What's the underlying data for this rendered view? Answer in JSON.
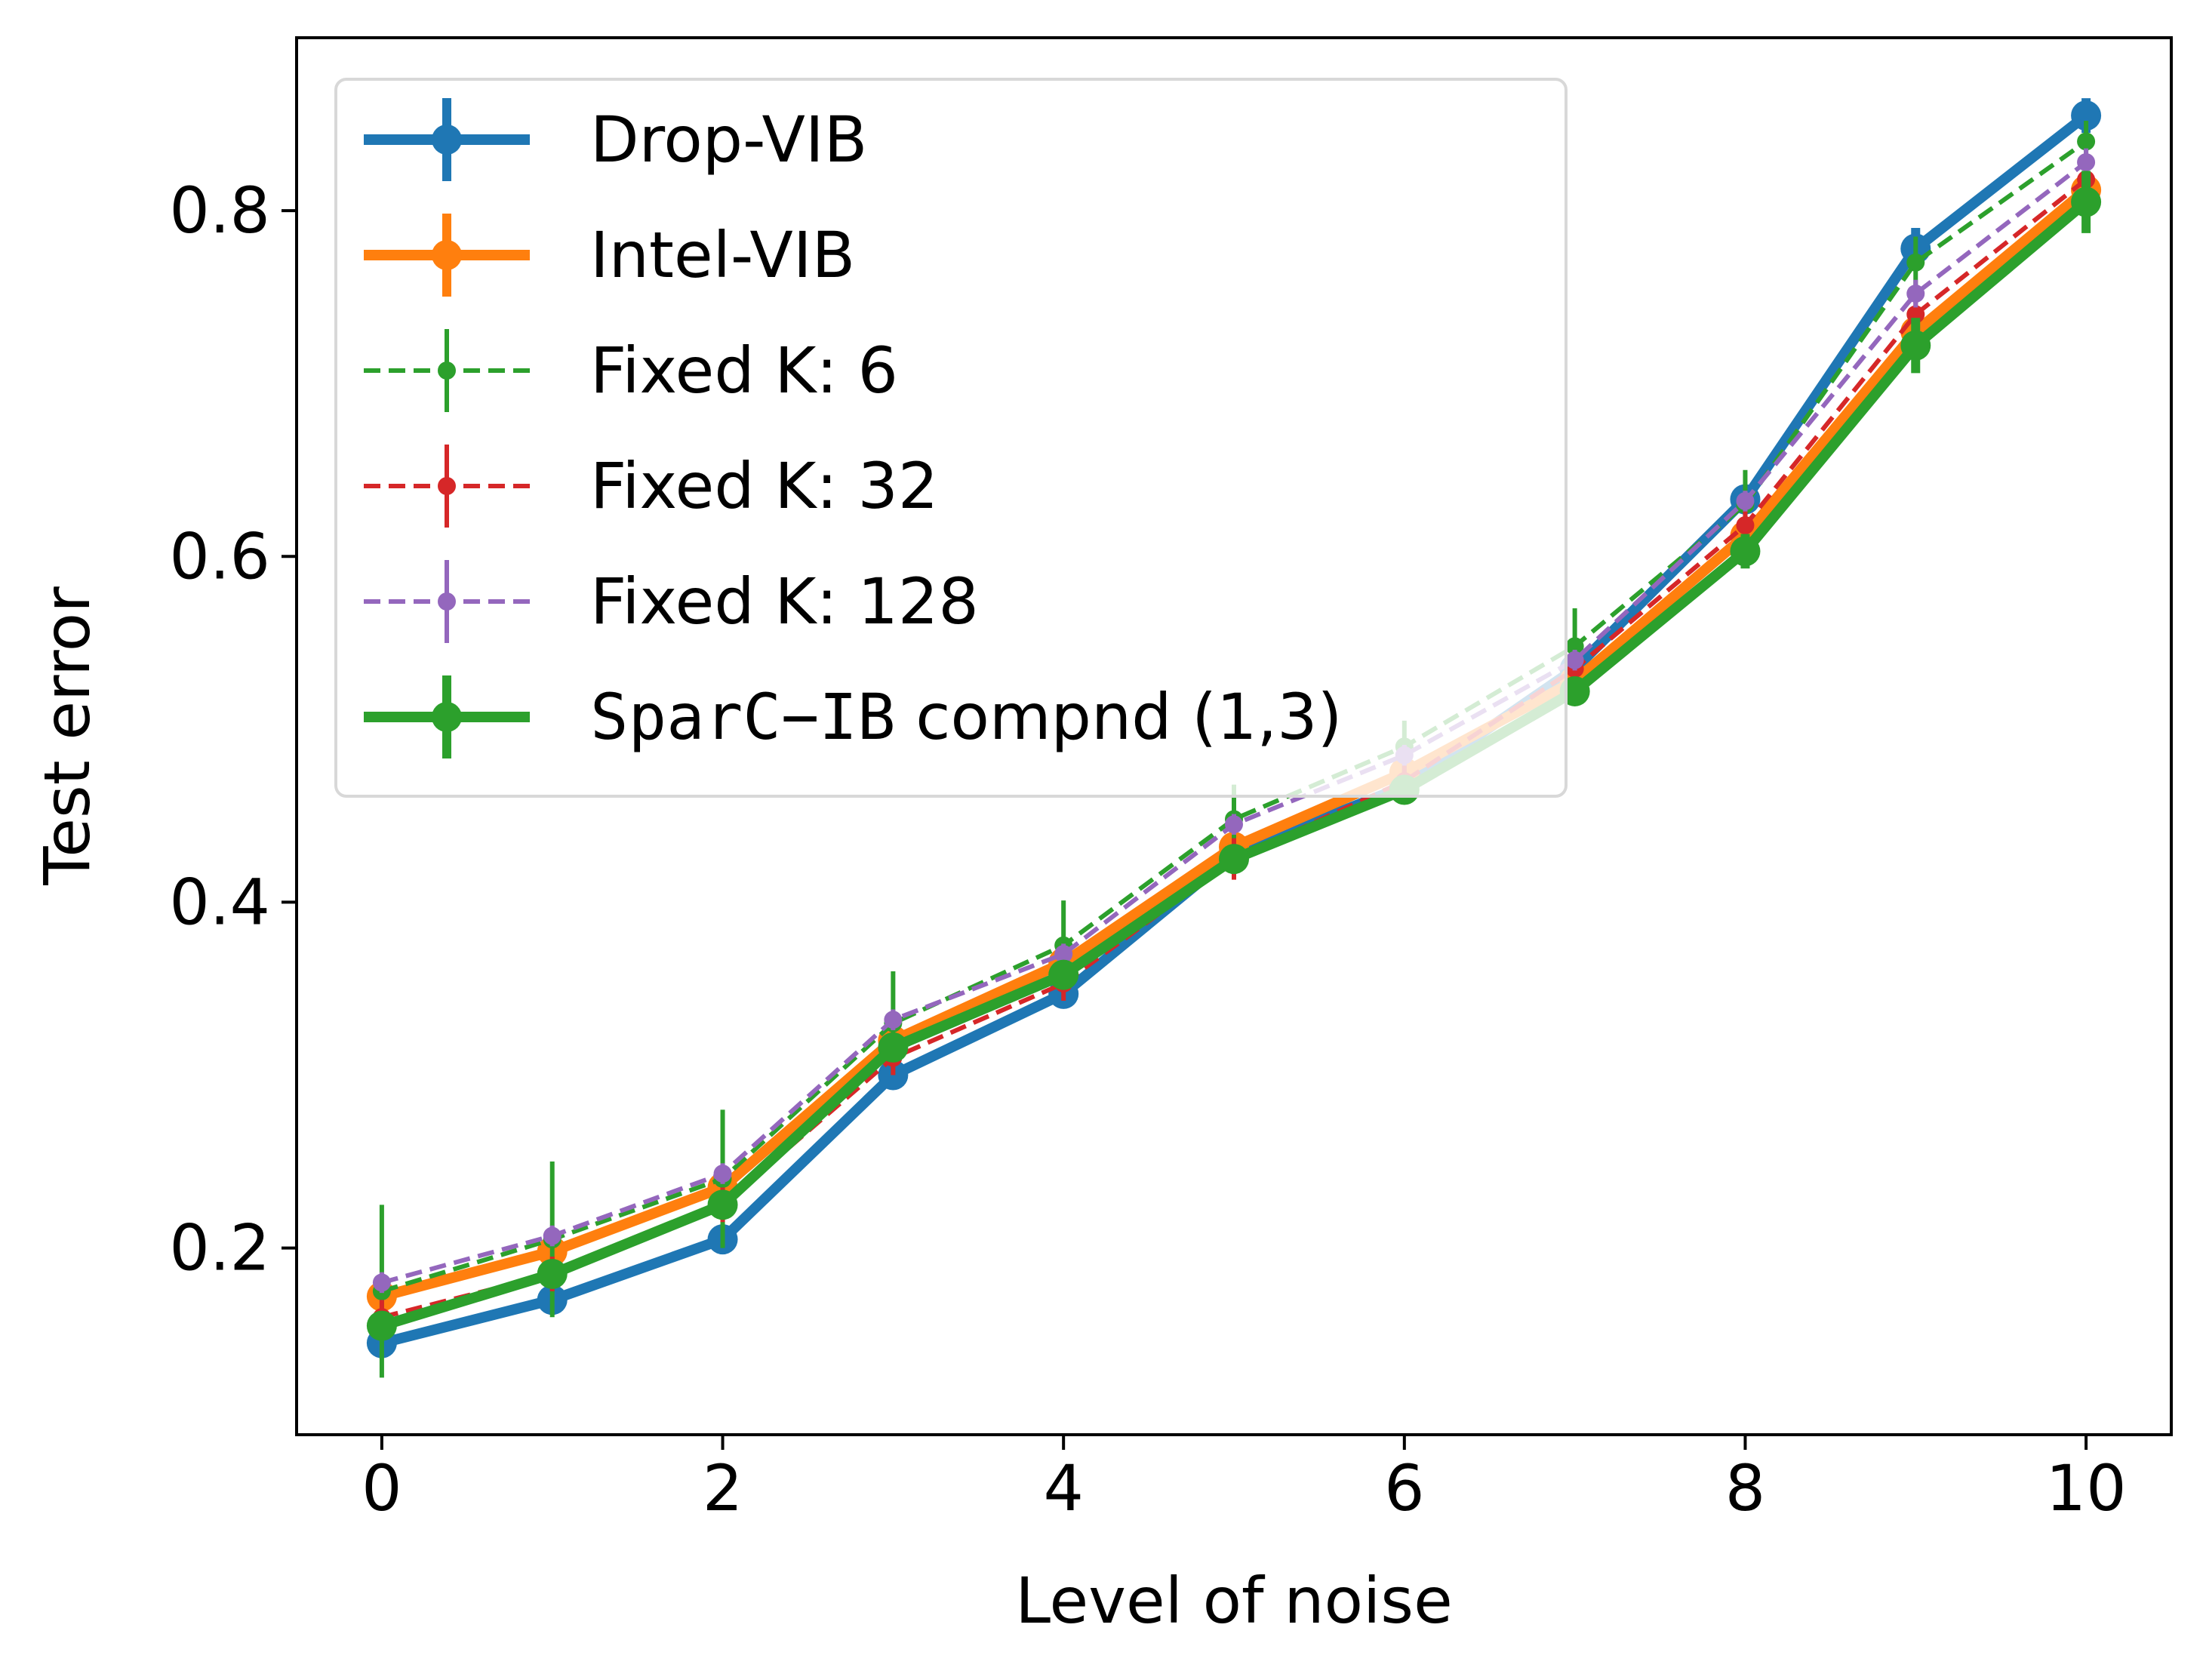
{
  "chart_data": {
    "type": "line",
    "xlabel": "Level of noise",
    "ylabel": "Test error",
    "xlim": [
      -0.5,
      10.5
    ],
    "ylim": [
      0.092,
      0.9
    ],
    "xticks": [
      0,
      2,
      4,
      6,
      8,
      10
    ],
    "yticks": [
      0.2,
      0.4,
      0.6,
      0.8
    ],
    "xtick_labels": [
      "0",
      "2",
      "4",
      "6",
      "8",
      "10"
    ],
    "ytick_labels": [
      "0.2",
      "0.4",
      "0.6",
      "0.8"
    ],
    "legend_position": "upper-left",
    "x": [
      0,
      1,
      2,
      3,
      4,
      5,
      6,
      7,
      8,
      9,
      10
    ],
    "series": [
      {
        "name": "Drop-VIB",
        "color": "#1f77b4",
        "style": "solid",
        "values": [
          0.145,
          0.17,
          0.205,
          0.3,
          0.347,
          0.428,
          0.467,
          0.535,
          0.633,
          0.778,
          0.855
        ],
        "errors": [
          0.005,
          0.006,
          0.006,
          0.005,
          0.005,
          0.005,
          0.005,
          0.005,
          0.007,
          0.012,
          0.01
        ]
      },
      {
        "name": "Intel-VIB",
        "color": "#ff7f0e",
        "style": "solid",
        "values": [
          0.172,
          0.198,
          0.235,
          0.32,
          0.365,
          0.432,
          0.475,
          0.528,
          0.612,
          0.73,
          0.812
        ],
        "errors": [
          0.005,
          0.006,
          0.006,
          0.005,
          0.005,
          0.005,
          0.005,
          0.005,
          0.006,
          0.008,
          0.01
        ]
      },
      {
        "name": "Fixed K: 6",
        "color": "#2ca02c",
        "style": "dashed",
        "values": [
          0.175,
          0.205,
          0.24,
          0.33,
          0.375,
          0.448,
          0.49,
          0.548,
          0.63,
          0.77,
          0.84
        ],
        "errors": [
          0.05,
          0.045,
          0.04,
          0.03,
          0.026,
          0.02,
          0.015,
          0.022,
          0.02,
          0.015,
          0.012
        ]
      },
      {
        "name": "Fixed K: 32",
        "color": "#d62728",
        "style": "dashed",
        "values": [
          0.16,
          0.185,
          0.225,
          0.31,
          0.353,
          0.425,
          0.47,
          0.535,
          0.618,
          0.74,
          0.818
        ],
        "errors": [
          0.01,
          0.01,
          0.01,
          0.01,
          0.01,
          0.012,
          0.01,
          0.01,
          0.012,
          0.012,
          0.01
        ]
      },
      {
        "name": "Fixed K: 128",
        "color": "#9467bd",
        "style": "dashed",
        "values": [
          0.18,
          0.207,
          0.243,
          0.332,
          0.37,
          0.445,
          0.485,
          0.54,
          0.632,
          0.752,
          0.828
        ],
        "errors": [
          0.006,
          0.006,
          0.006,
          0.006,
          0.006,
          0.006,
          0.006,
          0.006,
          0.006,
          0.008,
          0.008
        ]
      },
      {
        "name": "SparC−IB compnd (1,3)",
        "color": "#2ca02c",
        "style": "solid",
        "values": [
          0.155,
          0.185,
          0.225,
          0.316,
          0.358,
          0.425,
          0.465,
          0.522,
          0.603,
          0.722,
          0.805
        ],
        "errors": [
          0.005,
          0.006,
          0.006,
          0.006,
          0.006,
          0.006,
          0.006,
          0.006,
          0.01,
          0.016,
          0.018
        ]
      }
    ]
  },
  "legend": {
    "items": [
      {
        "prefix": "Drop-VIB",
        "mono": "",
        "suffix": ""
      },
      {
        "prefix": "Intel-VIB",
        "mono": "",
        "suffix": ""
      },
      {
        "prefix": "Fixed K: 6",
        "mono": "",
        "suffix": ""
      },
      {
        "prefix": "Fixed K: 32",
        "mono": "",
        "suffix": ""
      },
      {
        "prefix": "Fixed K: 128",
        "mono": "",
        "suffix": ""
      },
      {
        "prefix": "",
        "mono": "SparC−IB",
        "suffix": " compnd (1,3)"
      }
    ]
  }
}
